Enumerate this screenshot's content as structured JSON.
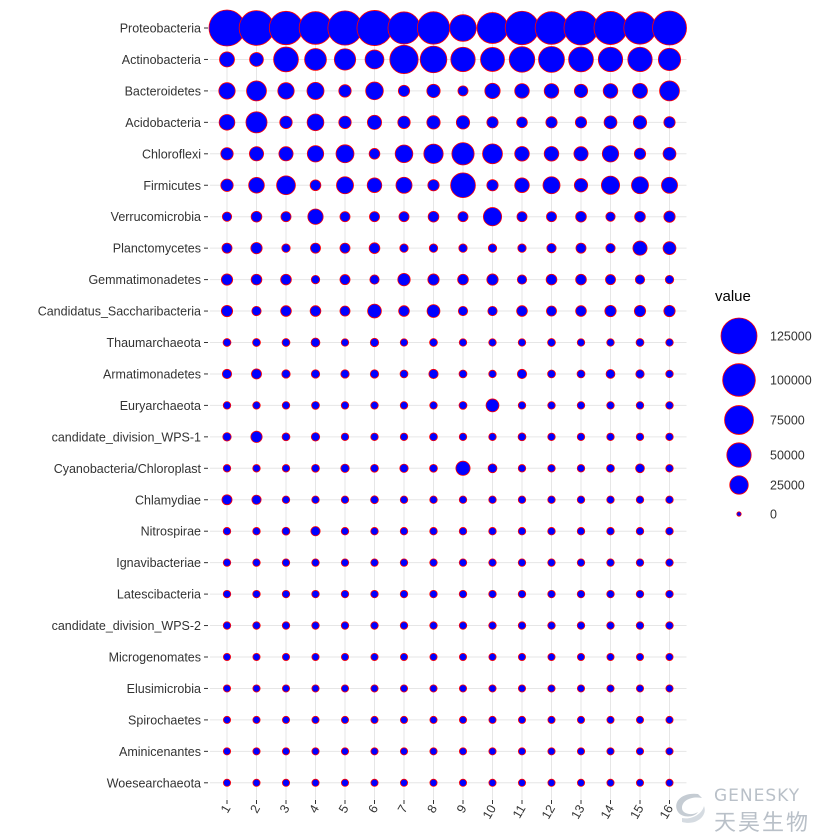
{
  "chart_data": {
    "type": "scatter",
    "title": "",
    "xlabel": "",
    "ylabel": "",
    "x": [
      "1",
      "2",
      "3",
      "4",
      "5",
      "6",
      "7",
      "8",
      "9",
      "10",
      "11",
      "12",
      "13",
      "14",
      "15",
      "16"
    ],
    "y": [
      "Proteobacteria",
      "Actinobacteria",
      "Bacteroidetes",
      "Acidobacteria",
      "Chloroflexi",
      "Firmicutes",
      "Verrucomicrobia",
      "Planctomycetes",
      "Gemmatimonadetes",
      "Candidatus_Saccharibacteria",
      "Thaumarchaeota",
      "Armatimonadetes",
      "Euryarchaeota",
      "candidate_division_WPS-1",
      "Cyanobacteria/Chloroplast",
      "Chlamydiae",
      "Nitrospirae",
      "Ignavibacteriae",
      "Latescibacteria",
      "candidate_division_WPS-2",
      "Microgenomates",
      "Elusimicrobia",
      "Spirochaetes",
      "Aminicenantes",
      "Woesearchaeota"
    ],
    "values": [
      [
        125000,
        115000,
        105000,
        100000,
        112000,
        118000,
        96000,
        98000,
        62000,
        88000,
        106000,
        100000,
        110000,
        103000,
        98000,
        110000
      ],
      [
        14000,
        11000,
        52000,
        38000,
        36000,
        26000,
        72000,
        62000,
        50000,
        48000,
        56000,
        58000,
        52000,
        50000,
        50000,
        40000
      ],
      [
        18000,
        30000,
        18000,
        20000,
        8000,
        22000,
        6000,
        10000,
        4000,
        15000,
        13000,
        13000,
        10000,
        13000,
        14000,
        30000
      ],
      [
        16000,
        35000,
        8000,
        19000,
        8000,
        12000,
        8000,
        10000,
        10000,
        6000,
        5000,
        6000,
        6000,
        9000,
        10000,
        6000
      ],
      [
        8000,
        12000,
        12000,
        18000,
        23000,
        5000,
        22000,
        28000,
        40000,
        30000,
        13000,
        13000,
        12000,
        18000,
        6000,
        9000
      ],
      [
        8000,
        16000,
        26000,
        5000,
        20000,
        13000,
        17000,
        6000,
        52000,
        6000,
        13000,
        20000,
        10000,
        24000,
        20000,
        17000
      ],
      [
        3000,
        5000,
        4000,
        15000,
        4000,
        4000,
        4000,
        5000,
        4000,
        24000,
        4000,
        4000,
        5000,
        3000,
        5000,
        6000
      ],
      [
        4000,
        6000,
        2000,
        4000,
        4000,
        5000,
        2000,
        2000,
        2000,
        2000,
        2000,
        3000,
        4000,
        3000,
        12000,
        9000
      ],
      [
        6000,
        5000,
        5000,
        2000,
        4000,
        3000,
        8000,
        6000,
        5000,
        6000,
        3000,
        5000,
        5000,
        4000,
        3000,
        2000
      ],
      [
        6000,
        3000,
        5000,
        5000,
        4000,
        11000,
        5000,
        9000,
        3000,
        3000,
        5000,
        4000,
        5000,
        6000,
        6000,
        6000
      ],
      [
        1500,
        1500,
        1500,
        2500,
        1200,
        2000,
        1200,
        1500,
        1200,
        1200,
        1200,
        1500,
        1200,
        1200,
        1500,
        1200
      ],
      [
        3000,
        4000,
        2000,
        2000,
        2000,
        2000,
        1500,
        3000,
        1500,
        1200,
        3000,
        1500,
        1500,
        2500,
        2000,
        1200
      ],
      [
        1200,
        1200,
        1200,
        1500,
        1200,
        1200,
        1200,
        1200,
        1500,
        9000,
        1200,
        1200,
        1200,
        1200,
        1200,
        1200
      ],
      [
        2000,
        6000,
        1500,
        2000,
        1200,
        1200,
        1200,
        1500,
        1200,
        1200,
        1500,
        1200,
        1200,
        1200,
        1200,
        1200
      ],
      [
        1200,
        1200,
        1200,
        1500,
        2000,
        1500,
        2000,
        1500,
        12000,
        2500,
        1200,
        1200,
        1200,
        1500,
        2500,
        1200
      ],
      [
        4000,
        3000,
        1200,
        1200,
        1200,
        1500,
        1200,
        1200,
        1200,
        1200,
        1200,
        1200,
        1200,
        1200,
        1200,
        1200
      ],
      [
        1200,
        1200,
        1500,
        3000,
        1200,
        1200,
        1200,
        1200,
        1200,
        1200,
        1200,
        1200,
        1200,
        1200,
        1200,
        1200
      ],
      [
        1200,
        1200,
        1200,
        1200,
        1200,
        1200,
        1200,
        1200,
        1200,
        1200,
        1200,
        1200,
        1200,
        1200,
        1200,
        1200
      ],
      [
        1200,
        1200,
        1200,
        1200,
        1200,
        1200,
        1200,
        1200,
        1200,
        1200,
        1200,
        1200,
        1200,
        1200,
        1200,
        1200
      ],
      [
        1200,
        1200,
        1200,
        1200,
        1200,
        1200,
        1200,
        1200,
        1200,
        1200,
        1200,
        1200,
        1200,
        1200,
        1200,
        1200
      ],
      [
        1000,
        1000,
        1000,
        1000,
        1000,
        1000,
        1000,
        1000,
        1000,
        1000,
        1000,
        1000,
        1000,
        1000,
        1000,
        1000
      ],
      [
        1000,
        1000,
        1000,
        1000,
        1000,
        1000,
        1000,
        1000,
        1000,
        1000,
        1000,
        1000,
        1000,
        1000,
        1000,
        1000
      ],
      [
        1000,
        1000,
        1000,
        1000,
        1000,
        1000,
        1000,
        1000,
        1000,
        1000,
        1000,
        1000,
        1000,
        1000,
        1000,
        1000
      ],
      [
        1000,
        1000,
        1000,
        1000,
        1000,
        1000,
        1000,
        1000,
        1000,
        1000,
        1000,
        1000,
        1000,
        1000,
        1000,
        1000
      ],
      [
        1000,
        1000,
        1000,
        1000,
        1000,
        1000,
        1000,
        1000,
        1000,
        1000,
        1000,
        1000,
        1000,
        1000,
        1000,
        1000
      ]
    ],
    "size_range": [
      0,
      125000
    ],
    "legend": {
      "title": "value",
      "position": "right",
      "breaks": [
        125000,
        100000,
        75000,
        50000,
        25000,
        0
      ],
      "labels": [
        "125000",
        "100000",
        "75000",
        "50000",
        "25000",
        "0"
      ]
    },
    "grid": true,
    "colors": {
      "fill": "#0000ff",
      "stroke": "#ff0000",
      "grid": "#e6e6e6",
      "text": "#333333"
    }
  },
  "watermark": {
    "en": "GENESKY",
    "cn": "天昊生物"
  }
}
